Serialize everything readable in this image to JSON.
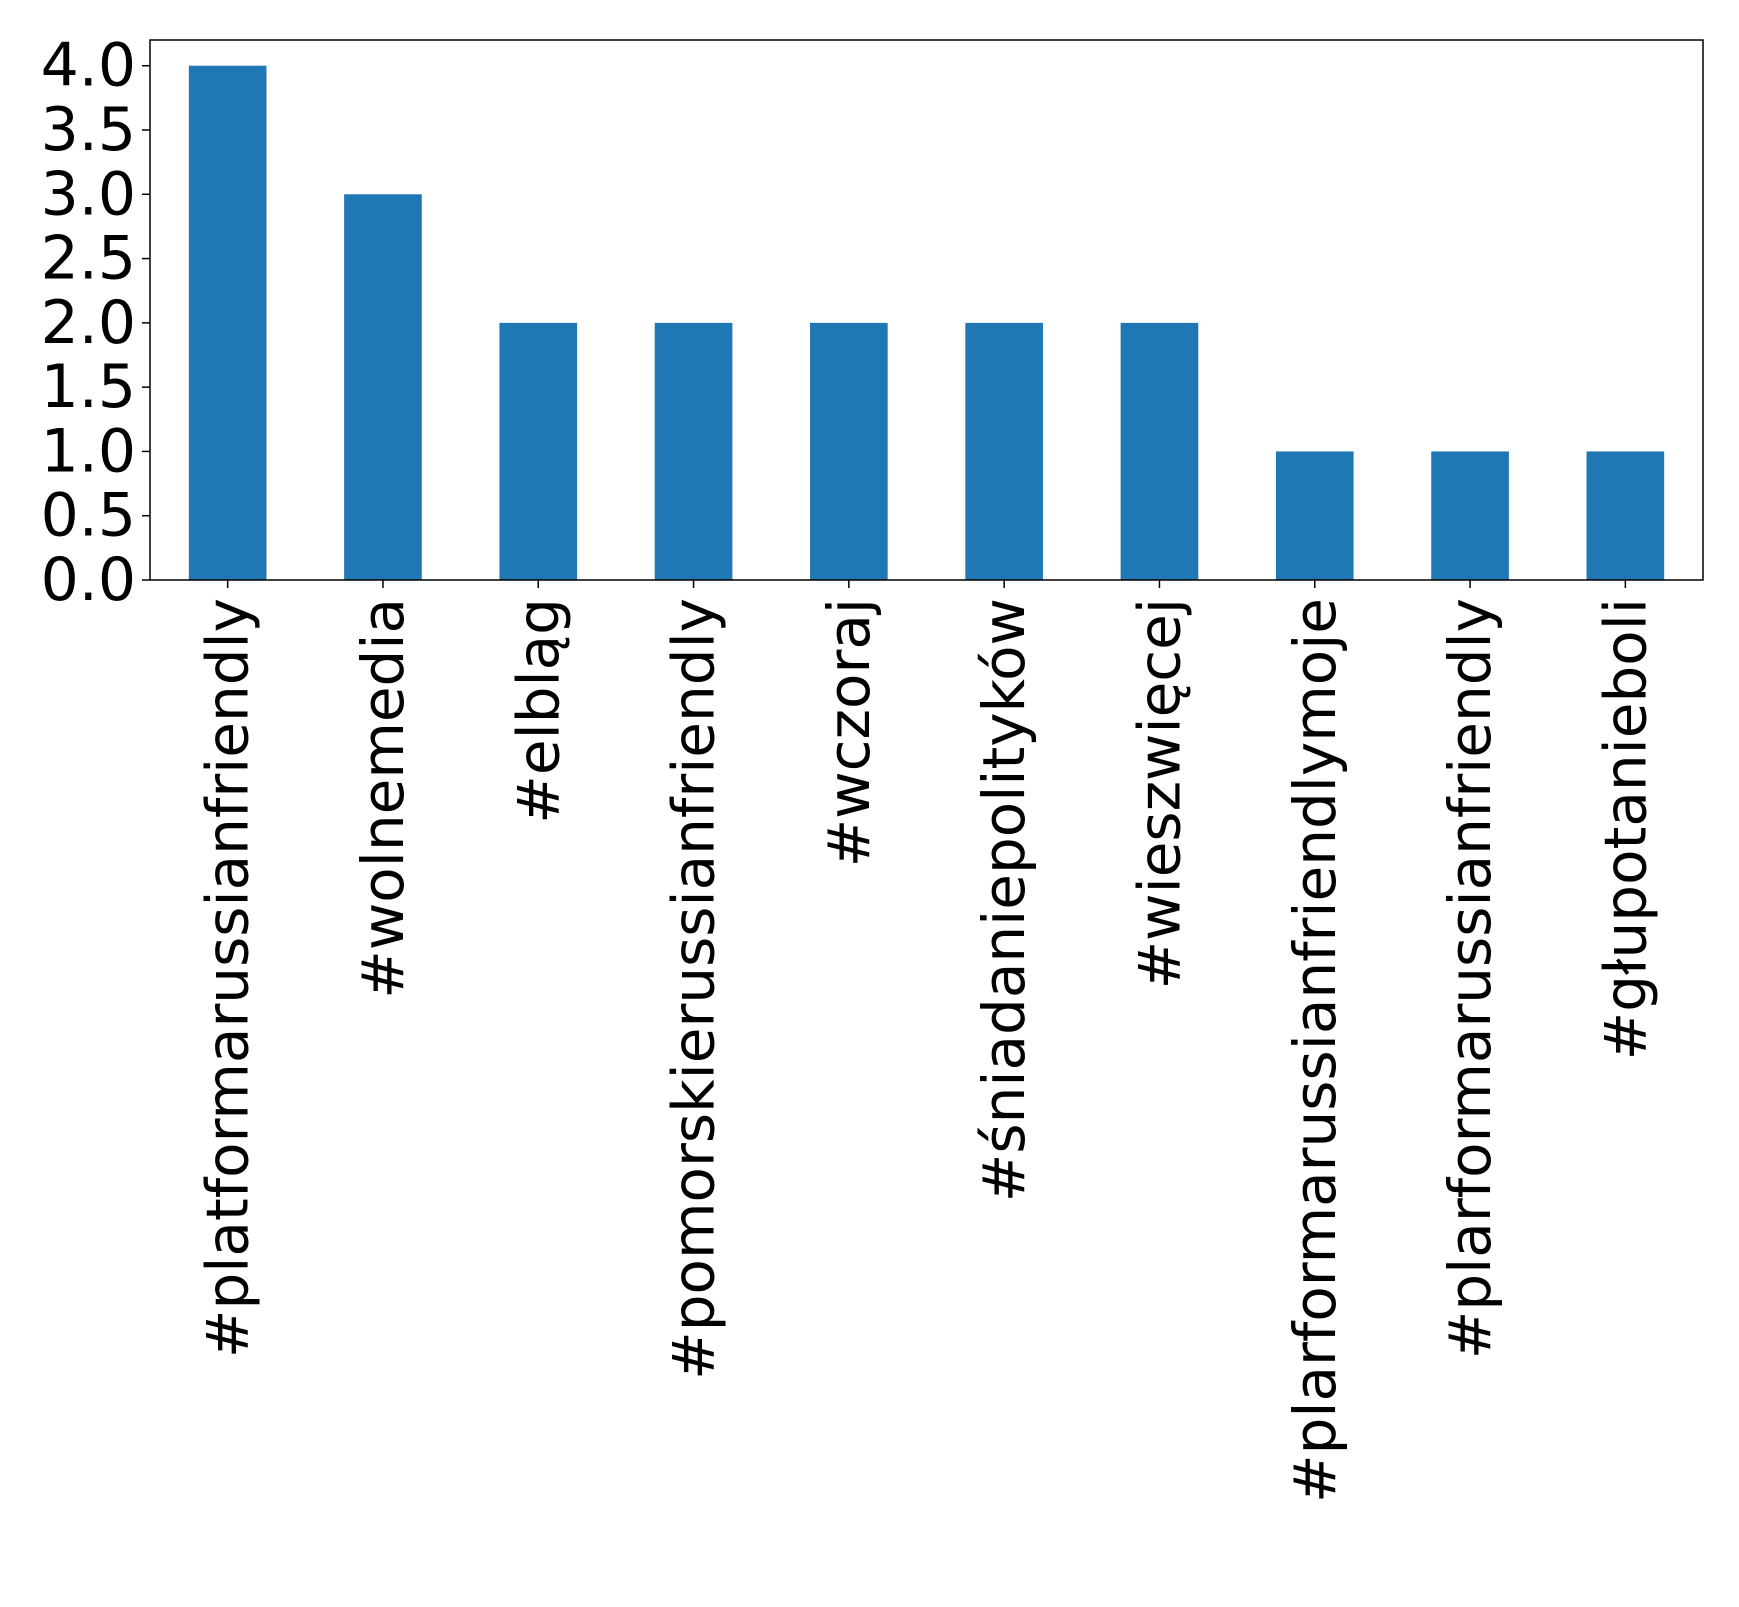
{
  "chart_data": {
    "type": "bar",
    "title": "",
    "xlabel": "",
    "ylabel": "",
    "categories": [
      "#platformarussianfriendly",
      "#wolnemedia",
      "#elbląg",
      "#pomorskierussianfriendly",
      "#wczoraj",
      "#śniadaniepolityków",
      "#wieszwięcej",
      "#plarformarussianfriendlymoje",
      "#plarformarussianfriendly",
      "#głupotanieboli"
    ],
    "values": [
      4,
      3,
      2,
      2,
      2,
      2,
      2,
      1,
      1,
      1
    ],
    "ylim": [
      0,
      4.2
    ],
    "yticks": [
      "0.0",
      "0.5",
      "1.0",
      "1.5",
      "2.0",
      "2.5",
      "3.0",
      "3.5",
      "4.0"
    ],
    "grid": false,
    "legend": "none",
    "bar_color": "#1f77b4"
  }
}
